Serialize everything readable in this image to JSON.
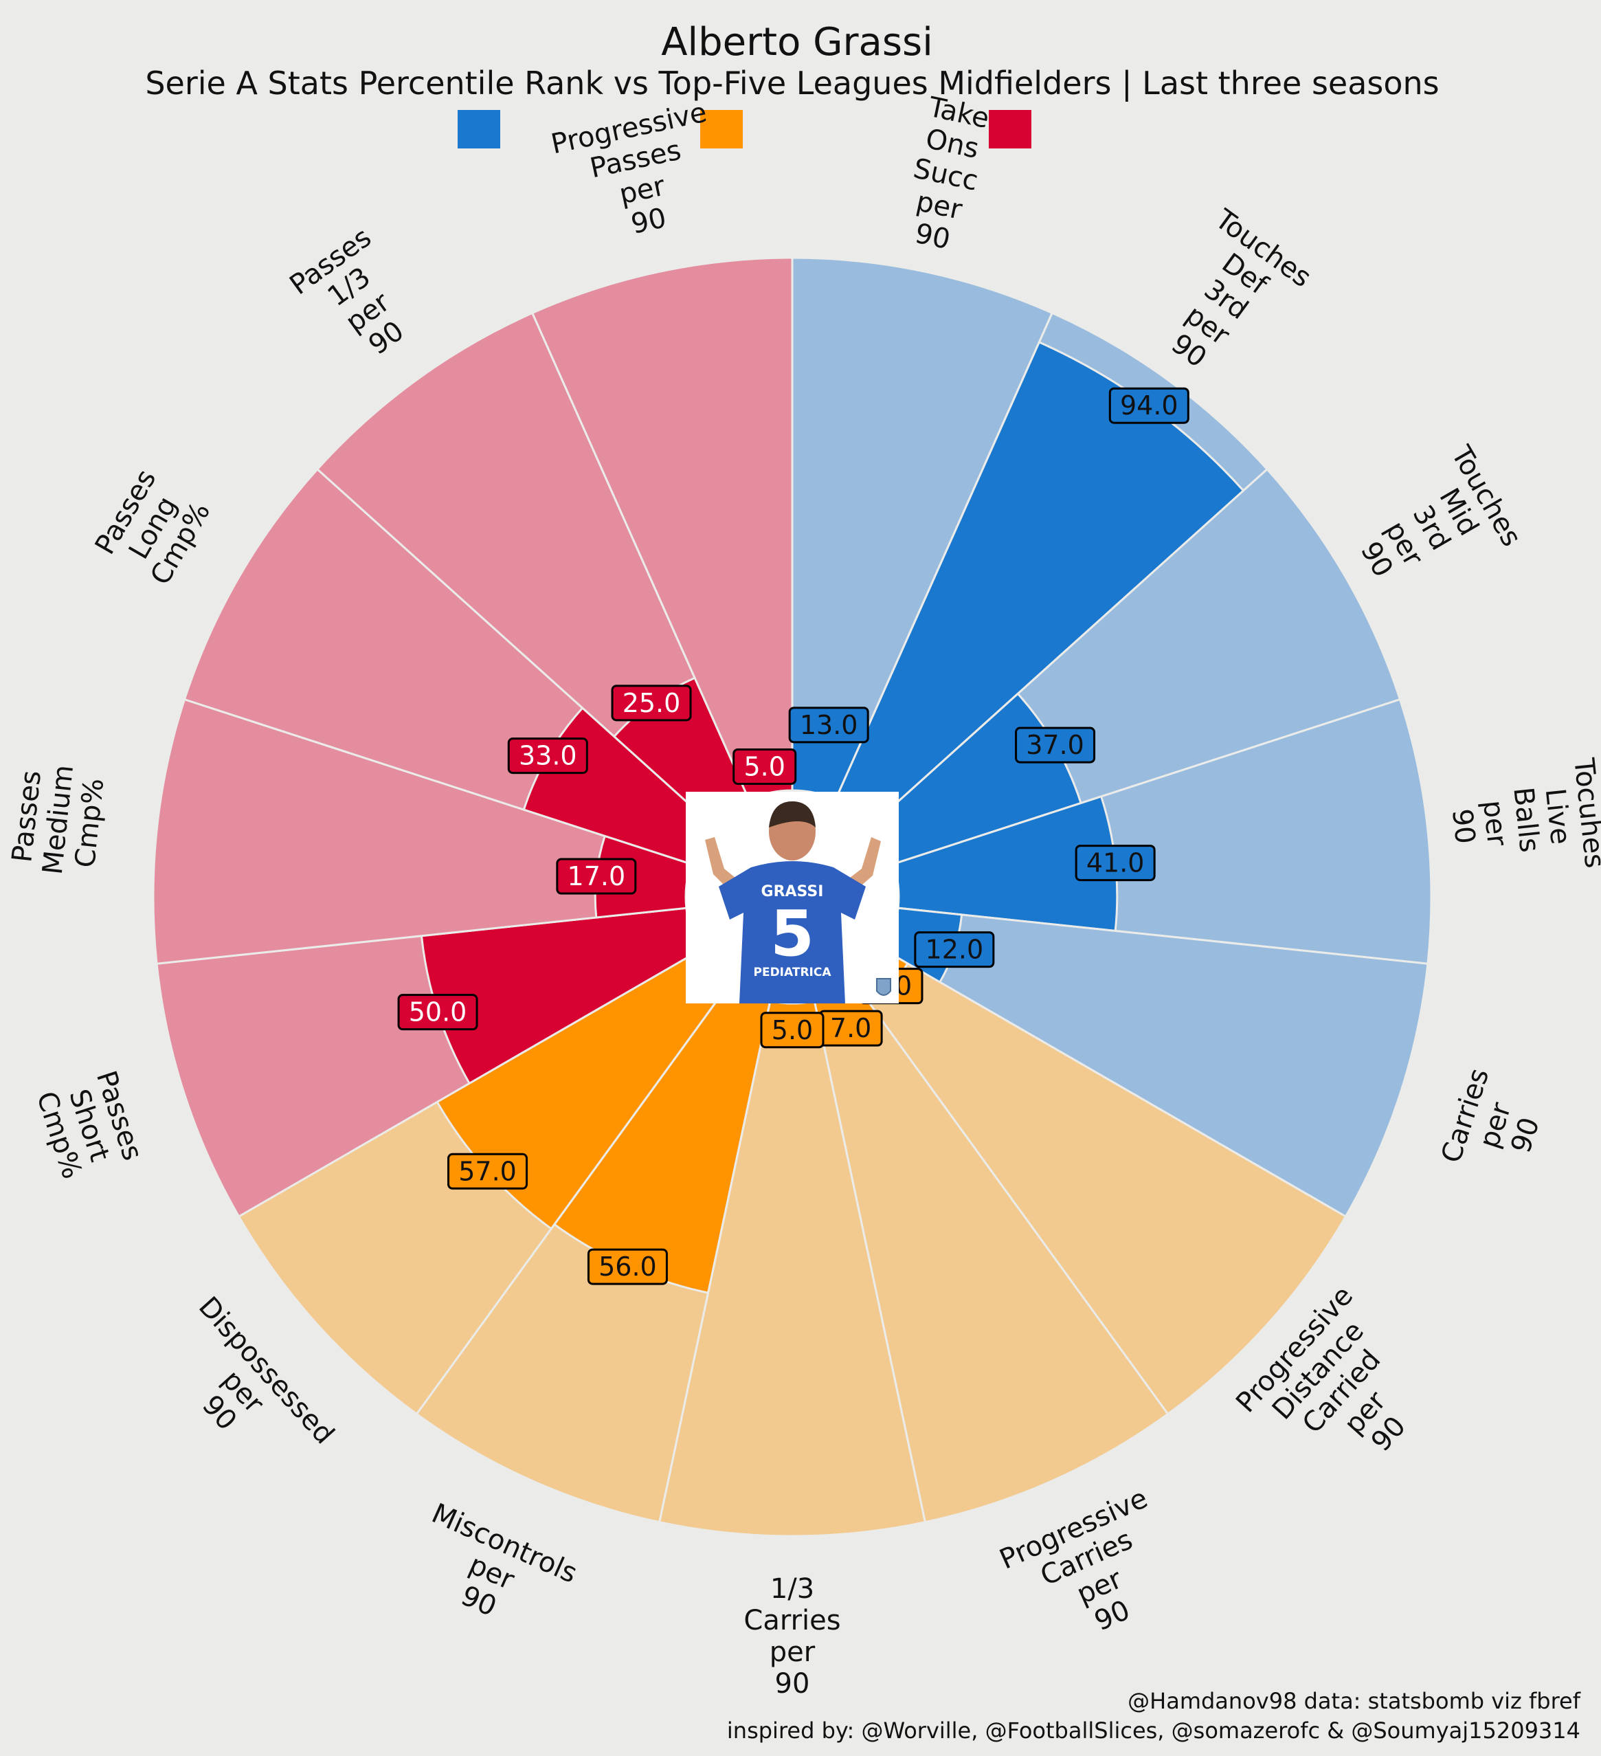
{
  "title": "Alberto Grassi",
  "subtitle": "Serie A Stats Percentile Rank vs Top-Five Leagues Midfielders | Last three seasons",
  "credits": {
    "line1": "@Hamdanov98 data: statsbomb viz fbref",
    "line2": "inspired by: @Worville, @FootballSlices, @somazerofc & @Soumyaj15209314"
  },
  "photo": {
    "jersey_name": "GRASSI",
    "jersey_number": "5",
    "sponsor": "PEDIATRICA"
  },
  "colors": {
    "background": "#ebebe9",
    "possession": "#1a78cf",
    "possession_light": "#99bcde",
    "carrying": "#ff9300",
    "carrying_light": "#f2c98e",
    "passing": "#d70232",
    "passing_light": "#e38d9e",
    "divider": "#ebebe9"
  },
  "chart_data": {
    "type": "polar-bar",
    "radial_range": [
      0,
      100
    ],
    "legend": {
      "placement": "top",
      "entries": [
        {
          "group": "possession",
          "label": ""
        },
        {
          "group": "carrying",
          "label": ""
        },
        {
          "group": "passing",
          "label": ""
        }
      ]
    },
    "categories": [
      {
        "label": "Take Ons Succ per 90",
        "value": 13.0,
        "group": "possession"
      },
      {
        "label": "Touches Def 3rd per 90",
        "value": 94.0,
        "group": "possession"
      },
      {
        "label": "Touches Mid 3rd per 90",
        "value": 37.0,
        "group": "possession"
      },
      {
        "label": "Tocuhes Live Balls per 90",
        "value": 41.0,
        "group": "possession"
      },
      {
        "label": "Carries per 90",
        "value": 12.0,
        "group": "possession"
      },
      {
        "label": "Progressive Distance Carried per 90",
        "value": 5.0,
        "group": "carrying"
      },
      {
        "label": "Progressive Carries per 90",
        "value": 7.0,
        "group": "carrying"
      },
      {
        "label": "1/3 Carries per 90",
        "value": 5.0,
        "group": "carrying"
      },
      {
        "label": "Miscontrols per 90",
        "value": 56.0,
        "group": "carrying"
      },
      {
        "label": "Dispossessed per 90",
        "value": 57.0,
        "group": "carrying"
      },
      {
        "label": "Passes Short Cmp%",
        "value": 50.0,
        "group": "passing"
      },
      {
        "label": "Passes Medium Cmp%",
        "value": 17.0,
        "group": "passing"
      },
      {
        "label": "Passes Long Cmp%",
        "value": 33.0,
        "group": "passing"
      },
      {
        "label": "Passes 1/3 per 90",
        "value": 25.0,
        "group": "passing"
      },
      {
        "label": "Progressive Passes per 90",
        "value": 5.0,
        "group": "passing"
      }
    ]
  }
}
